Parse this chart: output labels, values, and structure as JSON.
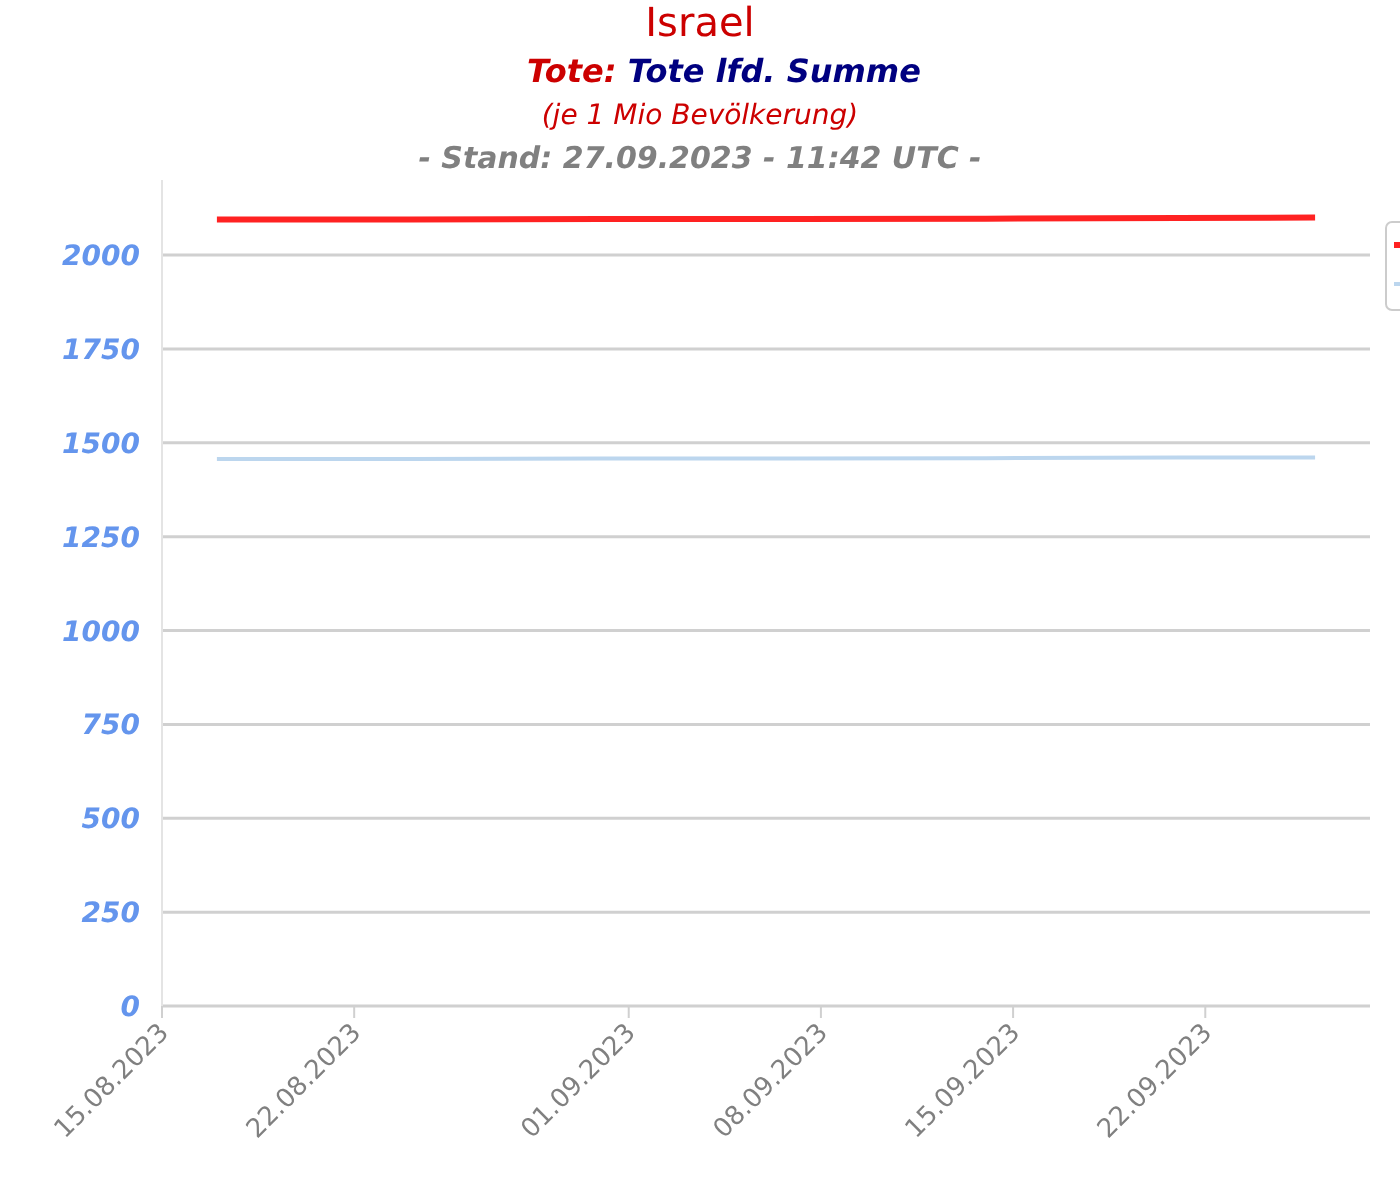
{
  "chart_data": {
    "type": "line",
    "title": "Israel",
    "subtitle": "Tote: Tote lfd. Summe",
    "annotations": [
      "(je 1 Mio Bevölkerung)",
      "- Stand: 27.09.2023 - 11:42 UTC -"
    ],
    "x": [
      "2023-08-17",
      "2023-08-24",
      "2023-08-31",
      "2023-09-07",
      "2023-09-14",
      "2023-09-21",
      "2023-09-26"
    ],
    "series": [
      {
        "color": "#ff2222",
        "values": [
          2095,
          2095,
          2096,
          2096,
          2097,
          2099,
          2100
        ]
      },
      {
        "color": "#bcd6ee",
        "values": [
          1457,
          1457,
          1458,
          1458,
          1459,
          1461,
          1461
        ]
      }
    ],
    "xlim": [
      "2023-08-15",
      "2023-09-28"
    ],
    "xticks": [
      {
        "value": "2023-08-15",
        "label": "15.08.2023"
      },
      {
        "value": "2023-08-22",
        "label": "22.08.2023"
      },
      {
        "value": "2023-09-01",
        "label": "01.09.2023"
      },
      {
        "value": "2023-09-08",
        "label": "08.09.2023"
      },
      {
        "value": "2023-09-15",
        "label": "15.09.2023"
      },
      {
        "value": "2023-09-22",
        "label": "22.09.2023"
      }
    ],
    "ylim": [
      0,
      2200
    ],
    "yticks": [
      0,
      250,
      500,
      750,
      1000,
      1250,
      1500,
      1750,
      2000
    ],
    "grid": "y",
    "line_style": "solid",
    "marker": "none"
  }
}
